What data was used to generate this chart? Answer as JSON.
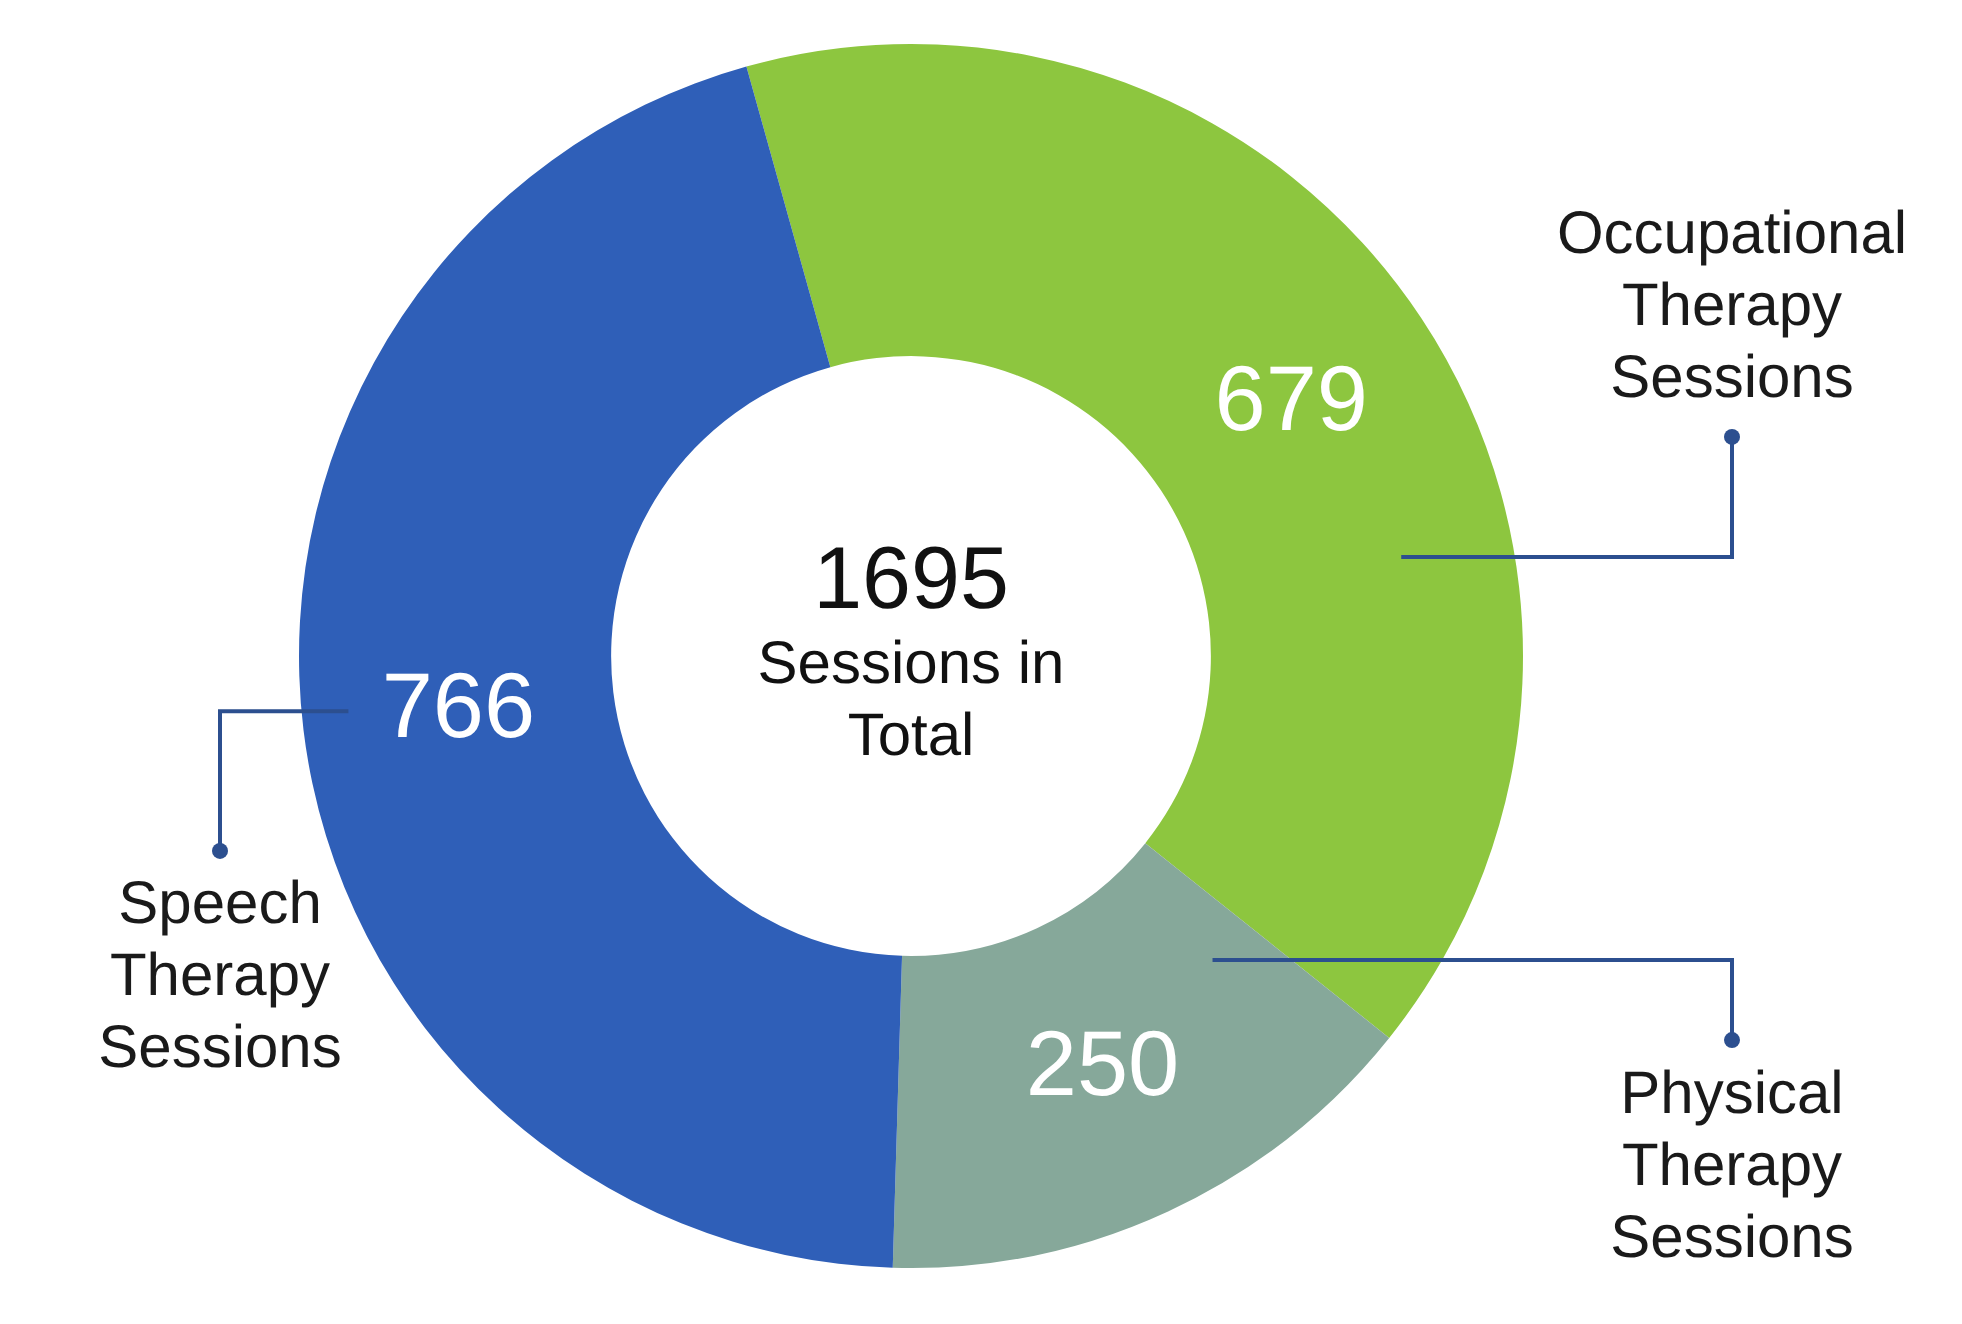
{
  "chart_data": {
    "type": "donut",
    "categories": [
      "Occupational Therapy Sessions",
      "Physical Therapy Sessions",
      "Speech Therapy Sessions"
    ],
    "values": [
      679,
      250,
      766
    ],
    "colors": [
      "#8dc63f",
      "#86a89a",
      "#2f5fb8"
    ],
    "data_labels": true,
    "legend": false,
    "annotations": [
      "1695",
      "Sessions in Total"
    ]
  }
}
